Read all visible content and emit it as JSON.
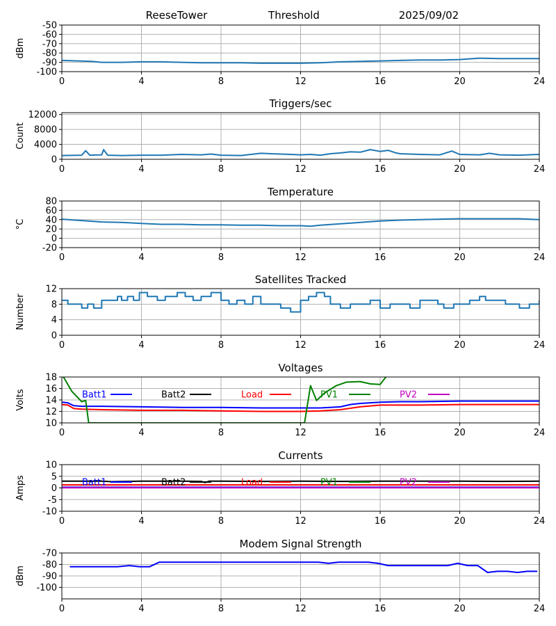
{
  "header": {
    "station": "ReeseTower",
    "mode": "Threshold",
    "date": "2025/09/02"
  },
  "colors": {
    "default_series": "#1f77b4",
    "batt1": "#0000ff",
    "batt2": "#000000",
    "load": "#ff0000",
    "pv1": "#008000",
    "pv2": "#bf00bf",
    "grid": "#b0b0b0"
  },
  "x_axis": {
    "range": [
      0,
      24
    ],
    "ticks": [
      "0",
      "4",
      "8",
      "12",
      "16",
      "20",
      "24"
    ]
  },
  "chart_data": [
    {
      "id": "threshold",
      "type": "line",
      "title": "",
      "ylabel": "dBm",
      "ylim": [
        -100,
        -50
      ],
      "yticks": [
        "-100",
        "-90",
        "-80",
        "-70",
        "-60",
        "-50"
      ],
      "grid": true,
      "series": [
        {
          "color_key": "default_series",
          "x": [
            0,
            1.5,
            2,
            3,
            4,
            5,
            6,
            7,
            8,
            9,
            10,
            11,
            12,
            13,
            14,
            15,
            16,
            17,
            18,
            19,
            20,
            21,
            22,
            23,
            24
          ],
          "y": [
            -88,
            -89,
            -90,
            -90,
            -89.5,
            -89.5,
            -90,
            -90.5,
            -90.5,
            -90.5,
            -91,
            -91,
            -91,
            -90.5,
            -89.5,
            -89,
            -88.5,
            -88,
            -87.5,
            -87.5,
            -87,
            -85.5,
            -86,
            -86,
            -86
          ]
        }
      ]
    },
    {
      "id": "triggers",
      "type": "line",
      "title": "Triggers/sec",
      "ylabel": "Count",
      "ylim": [
        0,
        12500
      ],
      "yticks": [
        "0",
        "4000",
        "8000",
        "12000"
      ],
      "grid": true,
      "series": [
        {
          "color_key": "default_series",
          "x": [
            0,
            1,
            1.2,
            1.4,
            2,
            2.1,
            2.3,
            3,
            4,
            5,
            6,
            7,
            7.5,
            8,
            9,
            9.8,
            10,
            10.5,
            11,
            11.5,
            12,
            12.5,
            13,
            13.5,
            14,
            14.5,
            15,
            15.5,
            16,
            16.4,
            16.8,
            17,
            18,
            19,
            19.6,
            20,
            21,
            21.5,
            22,
            23,
            24
          ],
          "y": [
            1000,
            1100,
            2300,
            1100,
            1200,
            2600,
            1100,
            1000,
            1100,
            1100,
            1300,
            1200,
            1400,
            1100,
            1000,
            1500,
            1600,
            1500,
            1400,
            1300,
            1200,
            1300,
            1100,
            1500,
            1700,
            2000,
            1900,
            2600,
            2100,
            2400,
            1700,
            1500,
            1300,
            1200,
            2200,
            1300,
            1200,
            1600,
            1200,
            1100,
            1300
          ]
        }
      ]
    },
    {
      "id": "temperature",
      "type": "line",
      "title": "Temperature",
      "ylabel": "°C",
      "ylim": [
        -20,
        80
      ],
      "yticks": [
        "-20",
        "0",
        "20",
        "40",
        "60",
        "80"
      ],
      "grid": true,
      "series": [
        {
          "color_key": "default_series",
          "x": [
            0,
            1,
            2,
            3,
            4,
            5,
            6,
            7,
            8,
            9,
            10,
            11,
            12,
            12.5,
            13,
            14,
            15,
            16,
            17,
            18,
            19,
            20,
            21,
            22,
            23,
            24
          ],
          "y": [
            41,
            38,
            35,
            34,
            32,
            30,
            30,
            29,
            29,
            28,
            28,
            27,
            27,
            26,
            28,
            31,
            34,
            37,
            39,
            40,
            41,
            42,
            42,
            42,
            42,
            40
          ]
        }
      ]
    },
    {
      "id": "satellites",
      "type": "line",
      "title": "Satellites Tracked",
      "ylabel": "Number",
      "ylim": [
        0,
        12
      ],
      "yticks": [
        "0",
        "4",
        "8",
        "12"
      ],
      "grid": true,
      "step": true,
      "series": [
        {
          "color_key": "default_series",
          "x": [
            0,
            0.3,
            0.8,
            1,
            1.3,
            1.6,
            2,
            2.5,
            2.8,
            3,
            3.3,
            3.6,
            3.9,
            4.3,
            4.8,
            5.2,
            5.8,
            6.2,
            6.6,
            7,
            7.5,
            8,
            8.4,
            8.8,
            9.2,
            9.6,
            10,
            10.4,
            11,
            11.5,
            11.7,
            12,
            12.4,
            12.8,
            13.2,
            13.5,
            14,
            14.5,
            15,
            15.5,
            16,
            16.5,
            17,
            17.5,
            18,
            18.5,
            18.9,
            19.2,
            19.7,
            20,
            20.5,
            21,
            21.3,
            21.8,
            22.3,
            22.7,
            23,
            23.5,
            24
          ],
          "y": [
            9,
            8,
            8,
            7,
            8,
            7,
            9,
            9,
            10,
            9,
            10,
            9,
            11,
            10,
            9,
            10,
            11,
            10,
            9,
            10,
            11,
            9,
            8,
            9,
            8,
            10,
            8,
            8,
            7,
            6,
            6,
            9,
            10,
            11,
            10,
            8,
            7,
            8,
            8,
            9,
            7,
            8,
            8,
            7,
            9,
            9,
            8,
            7,
            8,
            8,
            9,
            10,
            9,
            9,
            8,
            8,
            7,
            8,
            9
          ]
        }
      ]
    },
    {
      "id": "voltages",
      "type": "line",
      "title": "Voltages",
      "ylabel": "Volts",
      "ylim": [
        10,
        18
      ],
      "yticks": [
        "10",
        "12",
        "14",
        "16",
        "18"
      ],
      "grid": true,
      "series": [
        {
          "name": "Batt1",
          "color_key": "batt1",
          "x": [
            0,
            0.3,
            0.6,
            1,
            2,
            4,
            6,
            8,
            10,
            12,
            13,
            14,
            14.5,
            15,
            16,
            17,
            18,
            20,
            22,
            24
          ],
          "y": [
            13.6,
            13.5,
            13.0,
            12.9,
            12.9,
            12.8,
            12.7,
            12.7,
            12.6,
            12.6,
            12.6,
            12.8,
            13.2,
            13.4,
            13.6,
            13.7,
            13.7,
            13.8,
            13.8,
            13.8
          ]
        },
        {
          "name": "Batt2",
          "color_key": "batt2",
          "x": [],
          "y": []
        },
        {
          "name": "Load",
          "color_key": "load",
          "x": [
            0,
            0.3,
            0.6,
            1,
            2,
            4,
            6,
            8,
            10,
            12,
            13,
            14,
            15,
            16,
            18,
            20,
            22,
            24
          ],
          "y": [
            13.2,
            13.1,
            12.5,
            12.4,
            12.3,
            12.2,
            12.2,
            12.1,
            12.0,
            12.0,
            12.1,
            12.3,
            12.8,
            13.1,
            13.1,
            13.2,
            13.2,
            13.2
          ]
        },
        {
          "name": "PV1",
          "color_key": "pv1",
          "x": [
            0,
            0.5,
            1,
            1.2,
            1.35,
            12.2,
            12.5,
            12.8,
            13.2,
            13.8,
            14.3,
            15,
            15.5,
            16,
            16.4
          ],
          "y": [
            18.5,
            15.5,
            13.7,
            13.9,
            10,
            10,
            16.5,
            13.9,
            15.2,
            16.5,
            17.1,
            17.2,
            16.8,
            16.7,
            18.5
          ]
        },
        {
          "name": "PV2",
          "color_key": "pv2",
          "x": [],
          "y": []
        }
      ]
    },
    {
      "id": "currents",
      "type": "line",
      "title": "Currents",
      "ylabel": "Amps",
      "ylim": [
        -10,
        10
      ],
      "yticks": [
        "-10",
        "-5",
        "0",
        "5",
        "10"
      ],
      "grid": true,
      "series": [
        {
          "name": "Batt1",
          "color_key": "batt1",
          "x": [
            0,
            24
          ],
          "y": [
            0.3,
            0.3
          ]
        },
        {
          "name": "Batt2",
          "color_key": "batt2",
          "x": [
            0,
            2,
            2.5,
            4,
            6,
            7,
            7.2,
            7.4,
            8,
            10,
            12,
            14,
            16,
            18,
            20,
            22,
            24
          ],
          "y": [
            2.9,
            2.9,
            2.7,
            2.9,
            2.9,
            2.8,
            2.3,
            2.9,
            2.9,
            2.8,
            2.9,
            2.8,
            2.9,
            2.9,
            2.9,
            2.8,
            2.9
          ]
        },
        {
          "name": "Load",
          "color_key": "load",
          "x": [
            0,
            24
          ],
          "y": [
            1.3,
            1.3
          ]
        },
        {
          "name": "PV1",
          "color_key": "pv1",
          "x": [],
          "y": []
        },
        {
          "name": "PV2",
          "color_key": "pv2",
          "x": [
            0,
            24
          ],
          "y": [
            0.1,
            0.1
          ]
        }
      ]
    },
    {
      "id": "modem",
      "type": "line",
      "title": "Modem Signal Strength",
      "ylabel": "dBm",
      "ylim": [
        -110,
        -70
      ],
      "yticks": [
        "-100",
        "-90",
        "-80",
        "-70"
      ],
      "grid": true,
      "series": [
        {
          "color_key": "batt1",
          "x": [
            0.4,
            2.8,
            3.4,
            3.9,
            4.4,
            4.9,
            5.4,
            12.9,
            13.4,
            13.9,
            15.4,
            15.9,
            16.4,
            19.4,
            19.9,
            20.4,
            20.9,
            21.4,
            21.9,
            22.4,
            22.9,
            23.4,
            23.9
          ],
          "y": [
            -82,
            -82,
            -81,
            -82,
            -82,
            -78,
            -78,
            -78,
            -79,
            -78,
            -78,
            -79,
            -81,
            -81,
            -79,
            -81,
            -81,
            -87,
            -86,
            -86,
            -87,
            -86,
            -86
          ]
        }
      ]
    }
  ]
}
